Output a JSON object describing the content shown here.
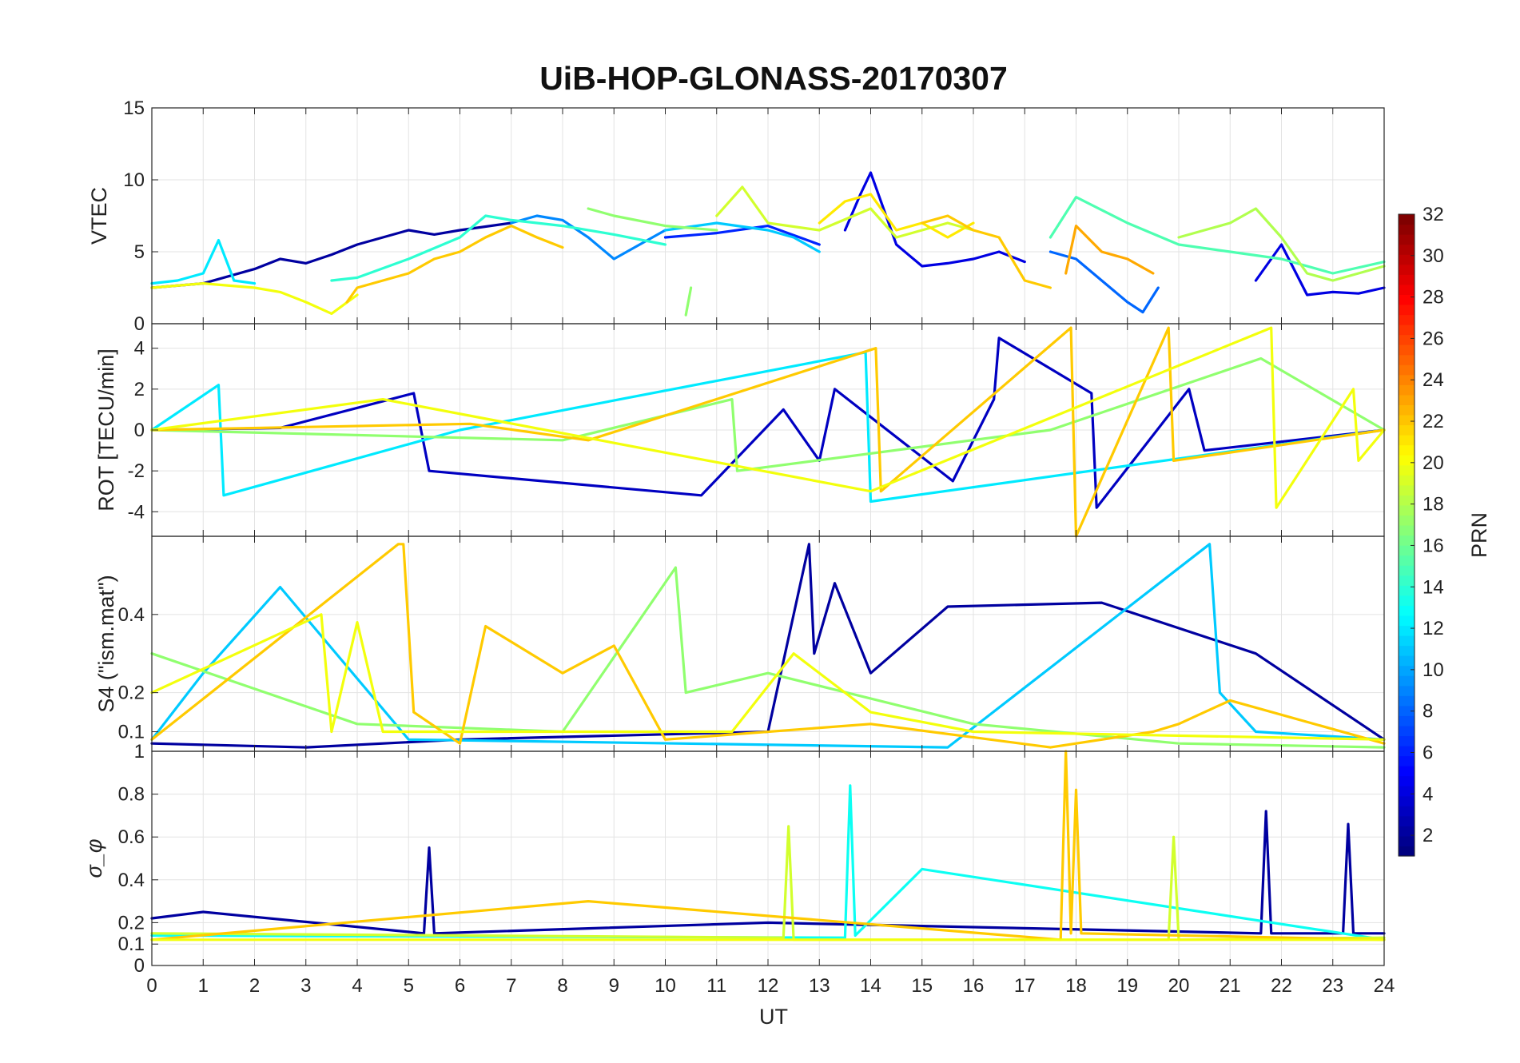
{
  "chart_data": {
    "type": "line",
    "title": "UiB-HOP-GLONASS-20170307",
    "xlabel": "UT",
    "x_ticks": [
      "0",
      "1",
      "2",
      "3",
      "4",
      "5",
      "6",
      "7",
      "8",
      "9",
      "10",
      "11",
      "12",
      "13",
      "14",
      "15",
      "16",
      "17",
      "18",
      "19",
      "20",
      "21",
      "22",
      "23",
      "24"
    ],
    "xlim": [
      0,
      24
    ],
    "grid": true,
    "panels": [
      {
        "ylabel": "VTEC",
        "ylim": [
          0,
          15
        ],
        "y_ticks": [
          0,
          5,
          10,
          15
        ],
        "tick_labels": [
          "0",
          "5",
          "10",
          "15"
        ],
        "series": [
          {
            "prn": 2,
            "x": [
              0,
              1,
              2,
              2.5,
              3,
              3.5,
              4,
              4.5,
              5,
              5.5,
              6,
              7
            ],
            "y": [
              2.5,
              2.8,
              3.8,
              4.5,
              4.2,
              4.8,
              5.5,
              6.0,
              6.5,
              6.2,
              6.5,
              7.0
            ]
          },
          {
            "prn": 4,
            "x": [
              13.5,
              13.8,
              14,
              14.5,
              15,
              15.5,
              16,
              16.5,
              17
            ],
            "y": [
              6.5,
              9.0,
              10.5,
              5.5,
              4.0,
              4.2,
              4.5,
              5.0,
              4.3
            ]
          },
          {
            "prn": 4,
            "x": [
              21.5,
              22,
              22.5,
              23,
              23.5,
              24
            ],
            "y": [
              3.0,
              5.5,
              2.0,
              2.2,
              2.1,
              2.5
            ]
          },
          {
            "prn": 6,
            "x": [
              10,
              11,
              12,
              13
            ],
            "y": [
              6.0,
              6.3,
              6.8,
              5.5
            ]
          },
          {
            "prn": 8,
            "x": [
              17.5,
              18,
              18.5,
              19,
              19.3,
              19.6
            ],
            "y": [
              5.0,
              4.5,
              3.0,
              1.5,
              0.8,
              2.5
            ]
          },
          {
            "prn": 9,
            "x": [
              7,
              7.5,
              8,
              8.5,
              9,
              10
            ],
            "y": [
              7.0,
              7.5,
              7.2,
              6.0,
              4.5,
              6.5
            ]
          },
          {
            "prn": 11,
            "x": [
              10,
              11,
              12,
              12.5,
              13
            ],
            "y": [
              6.5,
              7.0,
              6.5,
              6.0,
              5.0
            ]
          },
          {
            "prn": 12,
            "x": [
              0,
              0.5,
              1,
              1.3,
              1.6,
              2
            ],
            "y": [
              2.8,
              3.0,
              3.5,
              5.8,
              3.0,
              2.8
            ]
          },
          {
            "prn": 14,
            "x": [
              3.5,
              4,
              5,
              6,
              6.5,
              7,
              7.5,
              8,
              9,
              10
            ],
            "y": [
              3.0,
              3.2,
              4.5,
              6.0,
              7.5,
              7.2,
              7.0,
              6.8,
              6.2,
              5.5
            ]
          },
          {
            "prn": 15,
            "x": [
              17.5,
              18,
              19,
              20,
              21,
              22,
              23,
              24
            ],
            "y": [
              6.0,
              8.8,
              7.0,
              5.5,
              5.0,
              4.5,
              3.5,
              4.3
            ]
          },
          {
            "prn": 17,
            "x": [
              8.5,
              9,
              10,
              11
            ],
            "y": [
              8.0,
              7.5,
              6.8,
              6.5
            ]
          },
          {
            "prn": 17,
            "x": [
              10.4,
              10.5
            ],
            "y": [
              0.6,
              2.5
            ]
          },
          {
            "prn": 19,
            "x": [
              11,
              11.5,
              12,
              13,
              14,
              14.5,
              15,
              15.5,
              16
            ],
            "y": [
              7.5,
              9.5,
              7.0,
              6.5,
              8.0,
              6.0,
              6.5,
              7.0,
              6.5
            ]
          },
          {
            "prn": 20,
            "x": [
              0,
              1,
              2,
              2.5,
              3,
              3.5,
              4
            ],
            "y": [
              2.5,
              2.8,
              2.5,
              2.2,
              1.5,
              0.7,
              2.0
            ]
          },
          {
            "prn": 21,
            "x": [
              13,
              13.5,
              14,
              14.5,
              15,
              15.5,
              16
            ],
            "y": [
              7.0,
              8.5,
              9.0,
              6.5,
              7.0,
              6.0,
              7.0
            ]
          },
          {
            "prn": 22,
            "x": [
              3.8,
              4,
              4.5,
              5,
              5.5,
              6,
              6.5,
              7,
              7.5,
              8
            ],
            "y": [
              1.5,
              2.5,
              3.0,
              3.5,
              4.5,
              5.0,
              6.0,
              6.8,
              6.0,
              5.3
            ]
          },
          {
            "prn": 22,
            "x": [
              15,
              15.5,
              16,
              16.5,
              17,
              17.5
            ],
            "y": [
              7.0,
              7.5,
              6.5,
              6.0,
              3.0,
              2.5
            ]
          },
          {
            "prn": 23,
            "x": [
              17.8,
              18,
              18.5,
              19,
              19.5
            ],
            "y": [
              3.5,
              6.8,
              5.0,
              4.5,
              3.5
            ]
          },
          {
            "prn": 18,
            "x": [
              20,
              20.5,
              21,
              21.5,
              22,
              22.5,
              23,
              24
            ],
            "y": [
              6.0,
              6.5,
              7.0,
              8.0,
              6.0,
              3.5,
              3.0,
              4.0
            ]
          }
        ]
      },
      {
        "ylabel": "ROT [TECU/min]",
        "ylim": [
          -5.2,
          5.2
        ],
        "y_ticks": [
          -4,
          -2,
          0,
          2,
          4
        ],
        "tick_labels": [
          "-4",
          "-2",
          "0",
          "2",
          "4"
        ],
        "series": [
          {
            "prn": 3,
            "x": [
              0,
              2.5,
              5.1,
              5.4,
              10.7,
              12.3,
              13.0,
              13.3,
              15.6,
              16.4,
              16.5,
              18.3,
              18.4,
              20.2,
              20.5,
              24
            ],
            "y": [
              0,
              0.1,
              1.8,
              -2.0,
              -3.2,
              1.0,
              -1.5,
              2.0,
              -2.5,
              1.5,
              4.5,
              1.8,
              -3.8,
              2.0,
              -1.0,
              0
            ]
          },
          {
            "prn": 12,
            "x": [
              0,
              1.3,
              1.4,
              6.0,
              13.9,
              14.0,
              24
            ],
            "y": [
              0,
              2.2,
              -3.2,
              0,
              3.8,
              -3.5,
              0
            ]
          },
          {
            "prn": 17,
            "x": [
              0,
              8.0,
              11.3,
              11.4,
              17.5,
              21.6,
              24
            ],
            "y": [
              0,
              -0.5,
              1.5,
              -2.0,
              0,
              3.5,
              0
            ]
          },
          {
            "prn": 22,
            "x": [
              0,
              6.2,
              8.5,
              14.1,
              14.2,
              17.9,
              18.0,
              19.8,
              19.9,
              24
            ],
            "y": [
              0,
              0.3,
              -0.5,
              4.0,
              -3.0,
              5.0,
              -5.2,
              5.0,
              -1.5,
              0
            ]
          },
          {
            "prn": 20,
            "x": [
              0,
              4.5,
              14.0,
              21.8,
              21.9,
              23.4,
              23.5,
              24
            ],
            "y": [
              0,
              1.5,
              -3.0,
              5.0,
              -3.8,
              2.0,
              -1.5,
              0
            ]
          }
        ]
      },
      {
        "ylabel": "S4 (\"ism.mat\")",
        "ylim": [
          0.05,
          0.6
        ],
        "y_ticks": [
          0.1,
          0.2,
          0.4
        ],
        "tick_labels": [
          "0.1",
          "0.2",
          "0.4"
        ],
        "series": [
          {
            "prn": 2,
            "x": [
              0,
              3,
              6,
              12,
              12.8,
              12.9,
              13.3,
              14,
              15.5,
              18.5,
              21.5,
              24
            ],
            "y": [
              0.07,
              0.06,
              0.08,
              0.1,
              0.58,
              0.3,
              0.48,
              0.25,
              0.42,
              0.43,
              0.3,
              0.08
            ]
          },
          {
            "prn": 11,
            "x": [
              0,
              1,
              2.5,
              5,
              15.5,
              20.6,
              20.8,
              21.5,
              24
            ],
            "y": [
              0.08,
              0.25,
              0.47,
              0.08,
              0.06,
              0.58,
              0.2,
              0.1,
              0.08
            ]
          },
          {
            "prn": 17,
            "x": [
              0,
              4,
              8,
              10.2,
              10.4,
              12,
              16,
              20,
              24
            ],
            "y": [
              0.3,
              0.12,
              0.1,
              0.52,
              0.2,
              0.25,
              0.12,
              0.07,
              0.06
            ]
          },
          {
            "prn": 22,
            "x": [
              0,
              4.8,
              4.9,
              5.1,
              6,
              6.5,
              8,
              9,
              10,
              14,
              17.5,
              18,
              19.5,
              20,
              20.5,
              21,
              24
            ],
            "y": [
              0.08,
              0.58,
              0.58,
              0.15,
              0.07,
              0.37,
              0.25,
              0.32,
              0.08,
              0.12,
              0.06,
              0.07,
              0.1,
              0.12,
              0.15,
              0.18,
              0.07
            ]
          },
          {
            "prn": 20,
            "x": [
              0,
              3.3,
              3.5,
              4,
              4.5,
              11.3,
              12.5,
              14,
              16,
              24
            ],
            "y": [
              0.2,
              0.4,
              0.1,
              0.38,
              0.1,
              0.1,
              0.3,
              0.15,
              0.1,
              0.08
            ]
          }
        ]
      },
      {
        "ylabel": "σ_φ",
        "ylim": [
          0,
          1
        ],
        "y_ticks": [
          0,
          0.1,
          0.2,
          0.4,
          0.6,
          0.8,
          1
        ],
        "tick_labels": [
          "0",
          "0.1",
          "0.2",
          "0.4",
          "0.6",
          "0.8",
          "1"
        ],
        "series": [
          {
            "prn": 2,
            "x": [
              0,
              1,
              5.3,
              5.4,
              5.5,
              12,
              21.6,
              21.7,
              21.8,
              23.2,
              23.3,
              23.4,
              24
            ],
            "y": [
              0.22,
              0.25,
              0.15,
              0.55,
              0.15,
              0.2,
              0.15,
              0.72,
              0.15,
              0.15,
              0.66,
              0.15,
              0.15
            ]
          },
          {
            "prn": 13,
            "x": [
              0,
              13.5,
              13.6,
              13.7,
              15.0,
              24
            ],
            "y": [
              0.14,
              0.13,
              0.84,
              0.14,
              0.45,
              0.12
            ]
          },
          {
            "prn": 19,
            "x": [
              0,
              12.3,
              12.4,
              12.5,
              19.8,
              19.9,
              20.0,
              24
            ],
            "y": [
              0.15,
              0.13,
              0.65,
              0.12,
              0.12,
              0.6,
              0.12,
              0.13
            ]
          },
          {
            "prn": 22,
            "x": [
              0,
              8.5,
              17.7,
              17.8,
              17.9,
              18.0,
              18.1,
              24
            ],
            "y": [
              0.12,
              0.3,
              0.12,
              1.0,
              0.15,
              0.82,
              0.15,
              0.12
            ]
          },
          {
            "prn": 20,
            "x": [
              0,
              24
            ],
            "y": [
              0.12,
              0.12
            ]
          }
        ]
      }
    ],
    "colorbar": {
      "label": "PRN",
      "range": [
        1,
        32
      ],
      "tick_labels": [
        "2",
        "4",
        "6",
        "8",
        "10",
        "12",
        "14",
        "16",
        "18",
        "20",
        "22",
        "24",
        "26",
        "28",
        "30",
        "32"
      ],
      "colormap": "jet"
    }
  }
}
